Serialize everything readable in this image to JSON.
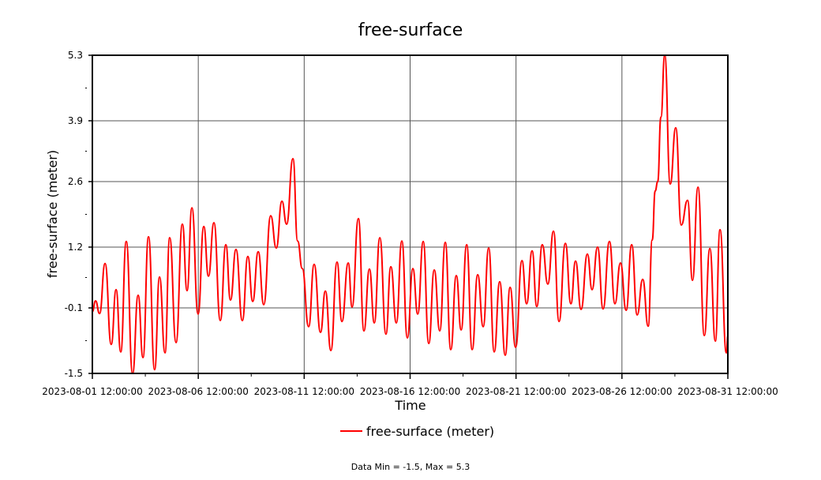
{
  "chart_data": {
    "type": "line",
    "title": "free-surface",
    "xlabel": "Time",
    "ylabel": "free-surface (meter)",
    "x_unit": "days since 2023-08-01 12:00:00",
    "xlim": [
      0,
      30
    ],
    "ylim": [
      -1.5,
      5.3
    ],
    "grid": true,
    "legend_position": "bottom-center",
    "y_ticks": [
      -1.5,
      -0.1,
      1.2,
      2.6,
      3.9,
      5.3
    ],
    "y_tick_labels": [
      "-1.5",
      "-0.1",
      "1.2",
      "2.6",
      "3.9",
      "5.3"
    ],
    "x_ticks": [
      0,
      5,
      10,
      15,
      20,
      25,
      30
    ],
    "x_tick_labels": [
      "2023-08-01 12:00:00",
      "2023-08-06 12:00:00",
      "2023-08-11 12:00:00",
      "2023-08-16 12:00:00",
      "2023-08-21 12:00:00",
      "2023-08-26 12:00:00",
      "2023-08-31 12:00:00"
    ],
    "series": [
      {
        "name": "free-surface (meter)",
        "color": "#ff0000",
        "x": [
          0.0,
          0.15,
          0.34,
          0.6,
          0.89,
          1.12,
          1.34,
          1.6,
          1.9,
          2.16,
          2.39,
          2.65,
          2.94,
          3.17,
          3.43,
          3.65,
          3.95,
          4.25,
          4.47,
          4.7,
          4.99,
          5.26,
          5.48,
          5.74,
          6.04,
          6.3,
          6.52,
          6.78,
          7.08,
          7.34,
          7.57,
          7.83,
          8.09,
          8.42,
          8.68,
          8.95,
          9.17,
          9.47,
          9.69,
          9.91,
          10.21,
          10.47,
          10.77,
          11.0,
          11.26,
          11.55,
          11.78,
          12.08,
          12.26,
          12.56,
          12.82,
          13.08,
          13.31,
          13.57,
          13.86,
          14.09,
          14.35,
          14.61,
          14.87,
          15.13,
          15.36,
          15.62,
          15.88,
          16.14,
          16.4,
          16.66,
          16.92,
          17.18,
          17.41,
          17.67,
          17.93,
          18.19,
          18.45,
          18.71,
          18.97,
          19.23,
          19.49,
          19.72,
          19.98,
          20.28,
          20.5,
          20.76,
          20.98,
          21.24,
          21.5,
          21.77,
          22.03,
          22.33,
          22.59,
          22.81,
          23.07,
          23.37,
          23.59,
          23.85,
          24.11,
          24.41,
          24.67,
          24.93,
          25.2,
          25.46,
          25.72,
          25.98,
          26.24,
          26.43,
          26.57,
          26.69,
          26.84,
          27.02,
          27.28,
          27.54,
          27.8,
          28.1,
          28.33,
          28.59,
          28.89,
          29.15,
          29.41,
          29.63,
          29.93,
          30.0
        ],
        "values": [
          -0.18,
          0.05,
          -0.22,
          0.85,
          -0.88,
          0.29,
          -1.04,
          1.32,
          -1.5,
          0.17,
          -1.16,
          1.42,
          -1.42,
          0.56,
          -1.06,
          1.4,
          -0.84,
          1.69,
          0.27,
          2.04,
          -0.23,
          1.64,
          0.58,
          1.72,
          -0.37,
          1.25,
          0.07,
          1.15,
          -0.37,
          1.0,
          0.04,
          1.1,
          -0.03,
          1.87,
          1.18,
          2.18,
          1.69,
          3.09,
          1.33,
          0.74,
          -0.5,
          0.83,
          -0.62,
          0.26,
          -1.01,
          0.88,
          -0.39,
          0.86,
          -0.08,
          1.81,
          -0.59,
          0.73,
          -0.42,
          1.4,
          -0.66,
          0.78,
          -0.42,
          1.33,
          -0.74,
          0.74,
          -0.23,
          1.32,
          -0.86,
          0.71,
          -0.59,
          1.3,
          -0.99,
          0.59,
          -0.57,
          1.25,
          -0.99,
          0.61,
          -0.5,
          1.18,
          -1.04,
          0.46,
          -1.11,
          0.34,
          -0.94,
          0.91,
          -0.01,
          1.12,
          -0.07,
          1.25,
          0.41,
          1.54,
          -0.39,
          1.28,
          -0.01,
          0.9,
          -0.13,
          1.05,
          0.29,
          1.2,
          -0.12,
          1.32,
          -0.01,
          0.86,
          -0.15,
          1.25,
          -0.25,
          0.51,
          -0.49,
          1.35,
          2.4,
          2.6,
          3.98,
          5.3,
          2.55,
          3.75,
          1.67,
          2.2,
          0.49,
          2.48,
          -0.69,
          1.17,
          -0.81,
          1.57,
          -1.06,
          -0.69
        ]
      }
    ],
    "footer": "Data Min = -1.5, Max = 5.3"
  }
}
